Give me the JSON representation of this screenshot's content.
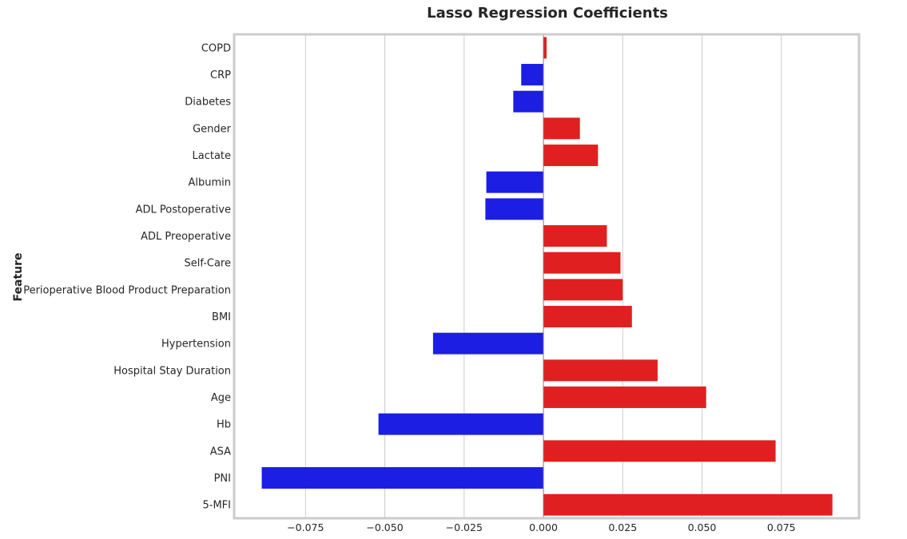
{
  "chart_data": {
    "type": "bar",
    "orientation": "horizontal",
    "title": "Lasso Regression Coefficients",
    "xlabel": "",
    "ylabel": "Feature",
    "categories": [
      "COPD",
      "CRP",
      "Diabetes",
      "Gender",
      "Lactate",
      "Albumin",
      "ADL Postoperative",
      "ADL Preoperative",
      "Self-Care",
      "Perioperative Blood Product Preparation",
      "BMI",
      "Hypertension",
      "Hospital Stay Duration",
      "Age",
      "Hb",
      "ASA",
      "PNI",
      "5-MFI"
    ],
    "values": [
      0.001,
      -0.007,
      -0.0095,
      0.0115,
      0.0172,
      -0.018,
      -0.0183,
      0.02,
      0.0243,
      0.025,
      0.0279,
      -0.0348,
      0.036,
      0.0513,
      -0.052,
      0.0732,
      -0.0888,
      0.0911
    ],
    "xlim": [
      -0.0975,
      0.0995
    ],
    "xticks": [
      -0.075,
      -0.05,
      -0.025,
      0.0,
      0.025,
      0.05,
      0.075
    ],
    "xtick_labels": [
      "−0.075",
      "−0.050",
      "−0.025",
      "0.000",
      "0.025",
      "0.050",
      "0.075"
    ],
    "grid": "vertical",
    "colors": {
      "positive": "#e02020",
      "negative": "#1c1ee4",
      "grid": "#cccccc",
      "frame": "#cccccc",
      "zero_line": "#808080"
    }
  }
}
